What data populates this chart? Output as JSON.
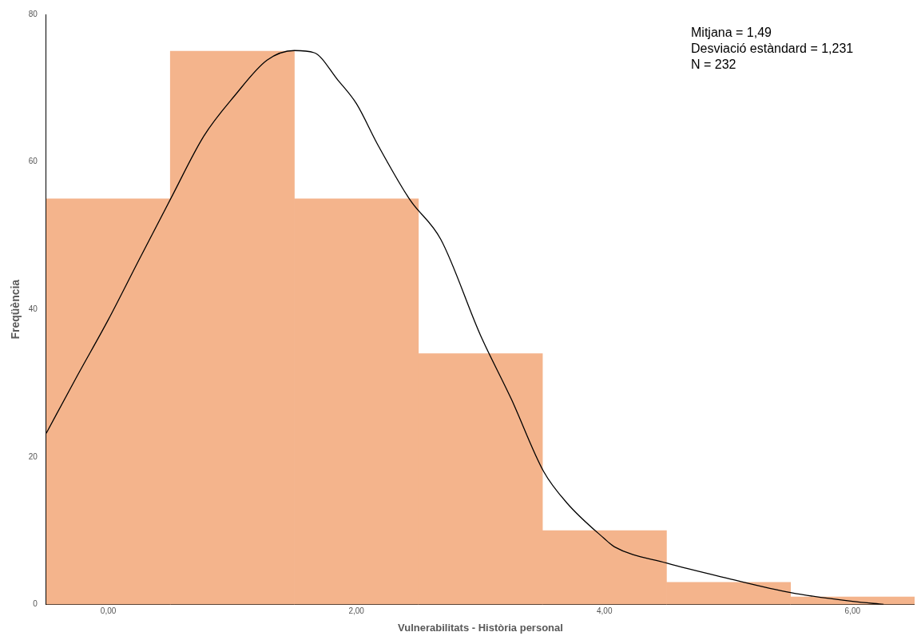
{
  "chart_data": {
    "type": "histogram",
    "xlabel": "Vulnerabilitats - Història personal",
    "ylabel": "Freqüència",
    "bins": [
      -0.5,
      0.5,
      1.5,
      2.5,
      3.5,
      4.5,
      5.5,
      6.5
    ],
    "values": [
      55,
      75,
      55,
      34,
      10,
      3,
      1
    ],
    "color": "#f4b48c",
    "series": [
      {
        "type": "line",
        "color": "#000000",
        "marker": "none",
        "x": [
          -0.5,
          -0.25,
          0,
          0.25,
          0.5,
          0.77,
          1.02,
          1.28,
          1.5,
          1.66,
          1.85,
          2,
          2.17,
          2.43,
          2.68,
          3,
          3.25,
          3.51,
          3.7,
          4,
          4.08,
          4.5,
          5,
          5.5,
          6,
          6.25
        ],
        "values": [
          23.2,
          31,
          38.6,
          46.8,
          54.9,
          63.5,
          69,
          73.8,
          75.1,
          74.8,
          71.1,
          67.9,
          62.4,
          54.9,
          49.5,
          36.5,
          27.8,
          18,
          13.7,
          8.9,
          7.8,
          5.6,
          3.5,
          1.6,
          0.4,
          0
        ]
      }
    ],
    "xlim": [
      -0.5,
      6.5
    ],
    "ylim": [
      0,
      80
    ],
    "xticks": [
      {
        "value": 0,
        "label": "0,00"
      },
      {
        "value": 2,
        "label": "2,00"
      },
      {
        "value": 4,
        "label": "4,00"
      },
      {
        "value": 6,
        "label": "6,00"
      }
    ],
    "yticks": [
      0,
      20,
      40,
      60,
      80
    ],
    "grid": false,
    "legend": false,
    "annotations": [
      "Mitjana = 1,49",
      "Desviació estàndard = 1,231",
      "N = 232"
    ]
  }
}
